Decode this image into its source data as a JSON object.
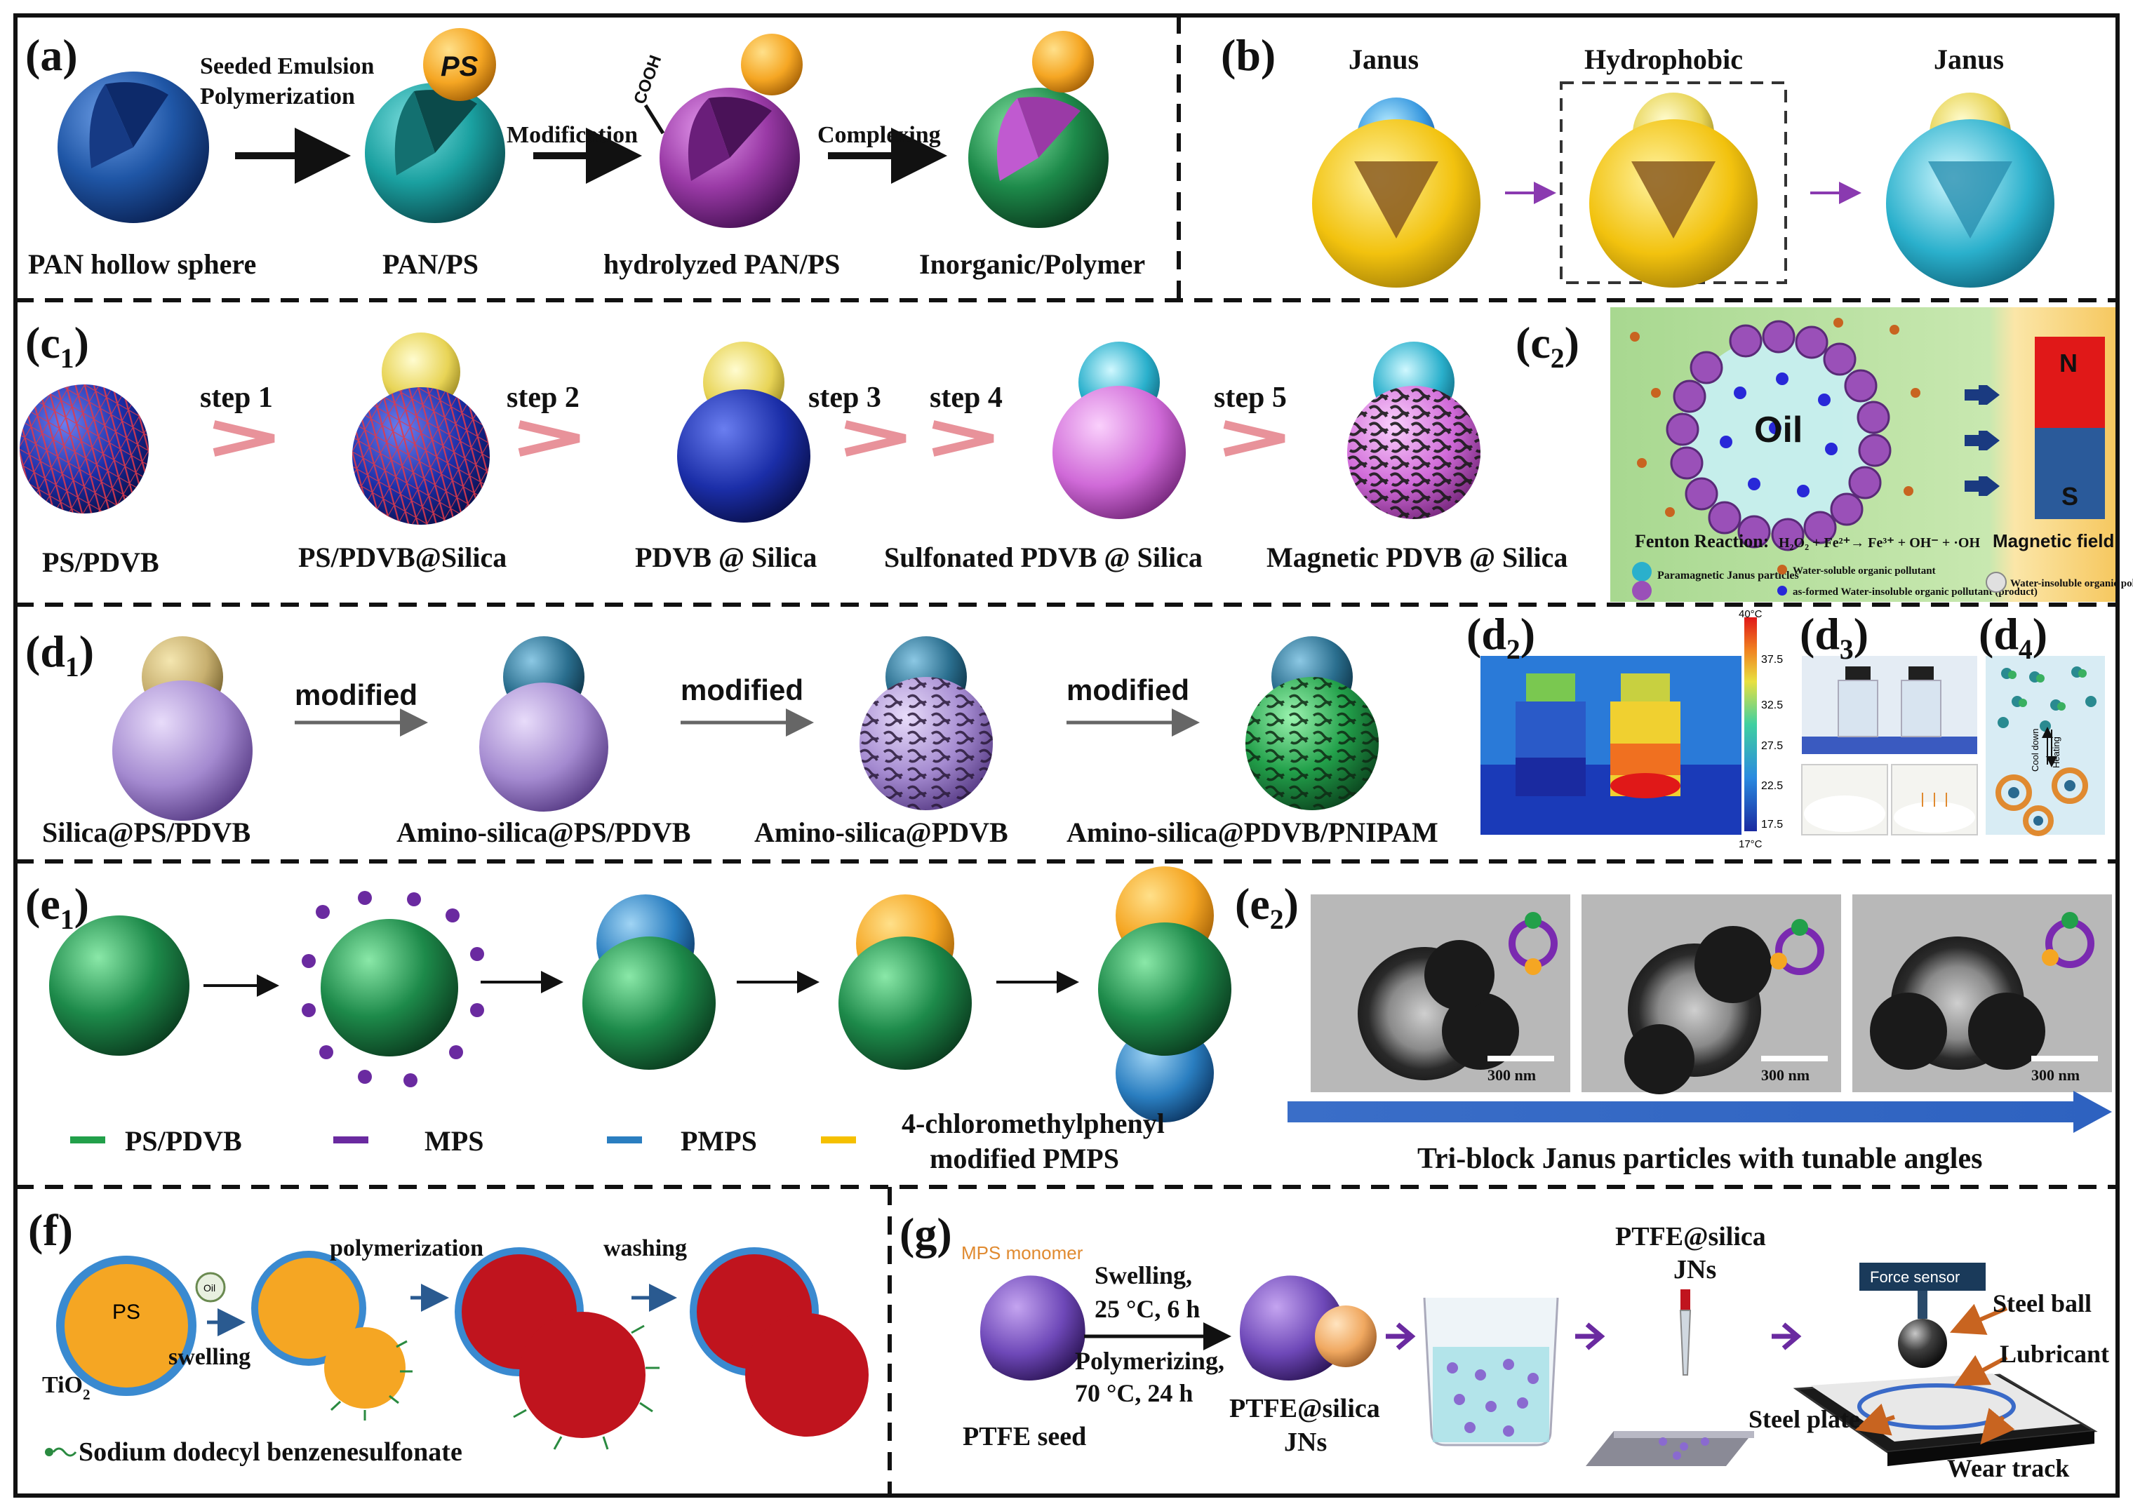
{
  "panels": {
    "a": {
      "tag": "(a)",
      "step_seeded_1": "Seeded Emulsion",
      "step_seeded_2": "Polymerization",
      "step_modification": "Modification",
      "step_complexing": "Complexing",
      "ps_badge": "PS",
      "cooh": "COOH",
      "captions": [
        "PAN hollow sphere",
        "PAN/PS",
        "hydrolyzed PAN/PS",
        "Inorganic/Polymer"
      ]
    },
    "b": {
      "tag": "(b)",
      "labels": [
        "Janus",
        "Hydrophobic",
        "Janus"
      ]
    },
    "c1": {
      "tag_main": "(c",
      "tag_sub": "1",
      "tag_end": ")",
      "steps": [
        "step 1",
        "step 2",
        "step 3",
        "step 4",
        "step 5"
      ],
      "captions": [
        "PS/PDVB",
        "PS/PDVB@Silica",
        "PDVB @ Silica",
        "Sulfonated PDVB @ Silica",
        "Magnetic PDVB @ Silica"
      ]
    },
    "c2": {
      "tag_main": "(c",
      "tag_sub": "2",
      "tag_end": ")",
      "oil": "Oil",
      "fenton": "Fenton Reaction:",
      "equation": "H₂O₂ + Fe²⁺→ Fe³⁺ + OH⁻ + ·OH",
      "magnet_n": "N",
      "magnet_s": "S",
      "magnetic_field": "Magnetic field",
      "legend": [
        "Paramagnetic Janus particles",
        "Water-soluble organic pollutant",
        "as-formed Water-insoluble organic pollutant (product)",
        "Water-insoluble organic pollutant"
      ]
    },
    "d1": {
      "tag_main": "(d",
      "tag_sub": "1",
      "tag_end": ")",
      "arrow_label": "modified",
      "captions": [
        "Silica@PS/PDVB",
        "Amino-silica@PS/PDVB",
        "Amino-silica@PDVB",
        "Amino-silica@PDVB/PNIPAM"
      ]
    },
    "d2": {
      "tag_main": "(d",
      "tag_sub": "2",
      "tag_end": ")",
      "scale_top": "40°C",
      "scale_bottom": "17°C",
      "ticks": [
        "37.5",
        "32.5",
        "27.5",
        "22.5",
        "17.5"
      ]
    },
    "d3": {
      "tag_main": "(d",
      "tag_sub": "3",
      "tag_end": ")"
    },
    "d4": {
      "tag_main": "(d",
      "tag_sub": "4",
      "tag_end": ")",
      "cool": "Cool down",
      "heat": "Heating"
    },
    "e1": {
      "tag_main": "(e",
      "tag_sub": "1",
      "tag_end": ")",
      "legend": [
        "PS/PDVB",
        "MPS",
        "PMPS",
        "4-chloromethylphenyl",
        "modified PMPS"
      ]
    },
    "e2": {
      "tag_main": "(e",
      "tag_sub": "2",
      "tag_end": ")",
      "scale": "300 nm",
      "caption": "Tri-block Janus particles with tunable angles"
    },
    "f": {
      "tag": "(f)",
      "ps": "PS",
      "tio2": "TiO",
      "tio2_sub": "2",
      "oil": "Oil",
      "swelling": "swelling",
      "polymerization": "polymerization",
      "washing": "washing",
      "surfactant": "Sodium dodecyl benzenesulfonate"
    },
    "g": {
      "tag": "(g)",
      "mps_monomer": "MPS monomer",
      "cond1": [
        "Swelling,",
        "25 °C, 6 h"
      ],
      "cond2": [
        "Polymerizing,",
        "70 °C, 24 h"
      ],
      "ptfe_seed": "PTFE seed",
      "jns_1": [
        "PTFE@silica",
        "JNs"
      ],
      "jns_2": [
        "PTFE@silica",
        "JNs"
      ],
      "force_sensor": "Force sensor",
      "steel_ball": "Steel ball",
      "lubricant": "Lubricant",
      "steel_plate": "Steel plate",
      "wear_track": "Wear track"
    }
  },
  "colors": {
    "pan_blue": "#1f56a6",
    "teal": "#1aa0a0",
    "purple": "#9a3aa6",
    "green": "#1d8a4a",
    "ps_orange": "#f5a623",
    "yellow": "#e8d456",
    "cyan": "#2ab0cc",
    "dark_blue": "#1b2ea8",
    "magenta": "#d06ad8",
    "lavender": "#a48ad0",
    "petrol": "#2a6e8e",
    "emerald": "#22a04a",
    "tio2_blue": "#3a8ad0",
    "red": "#c0141e",
    "arrow_purple": "#6a2aa0"
  }
}
